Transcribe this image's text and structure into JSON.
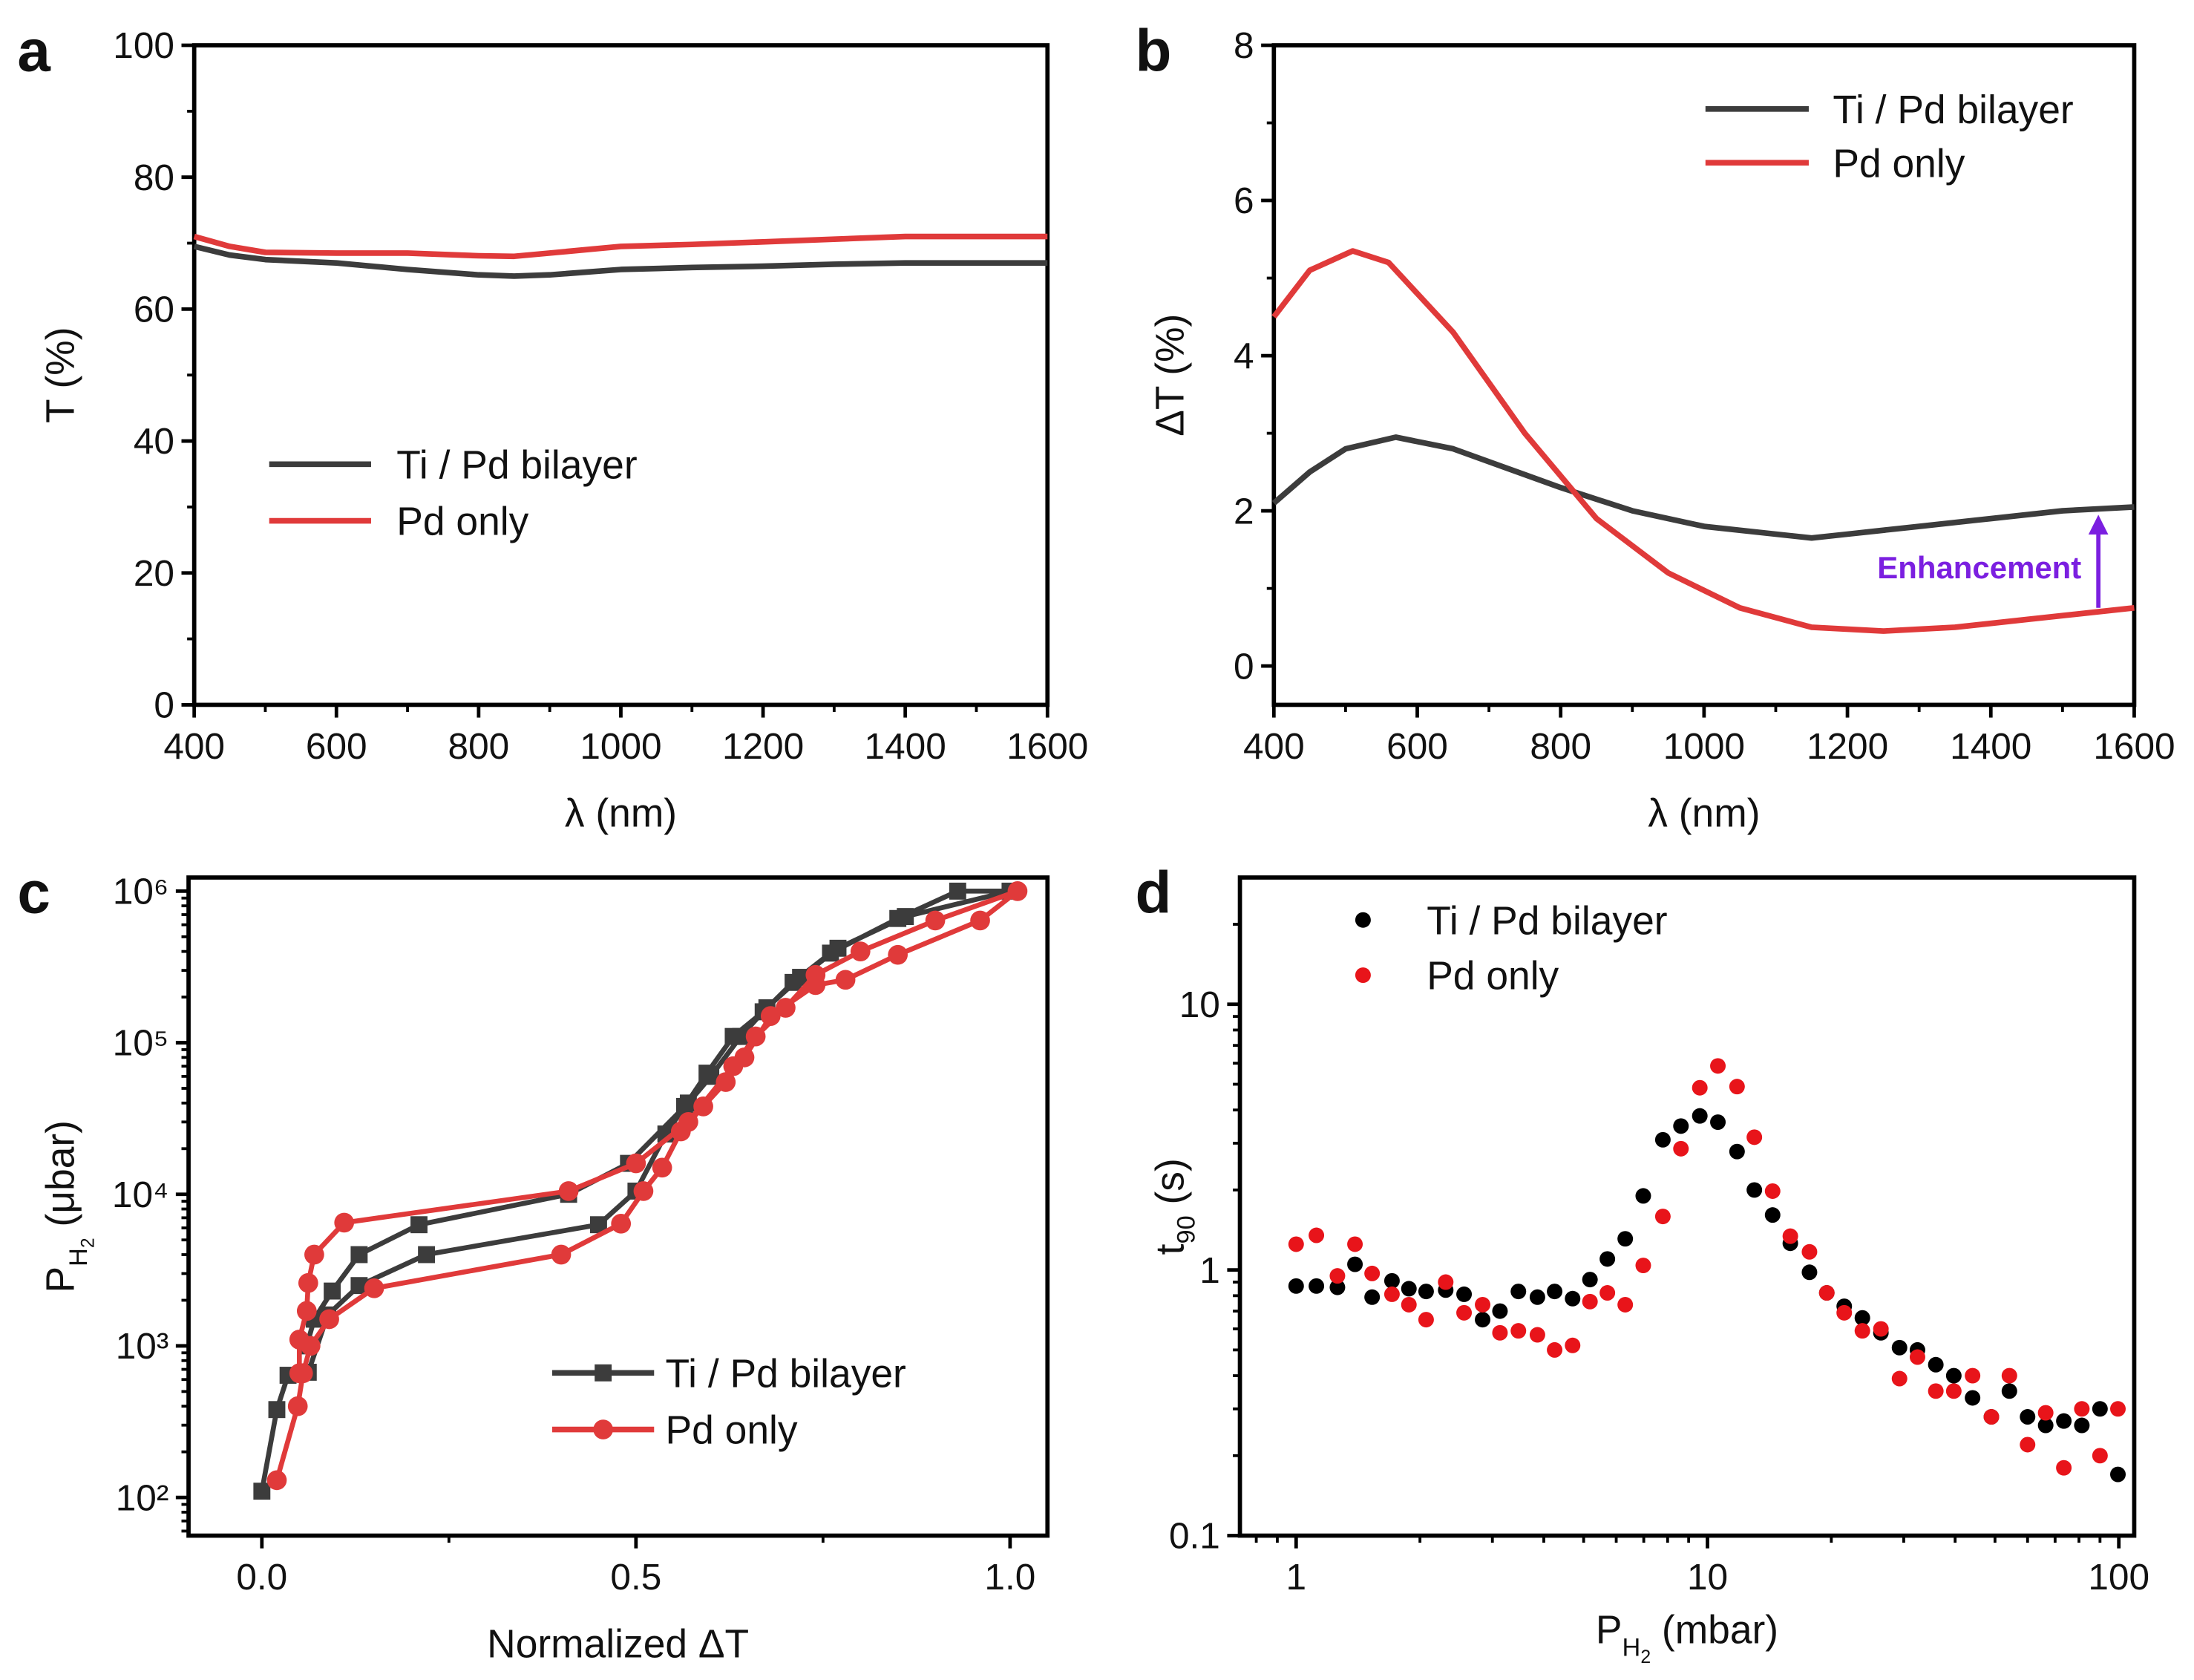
{
  "colors": {
    "ti_pd": "#3c3c3c",
    "pd_only": "#e03a3a",
    "ti_pd_dots": "#000000",
    "pd_only_dots": "#e8141a",
    "enhancement": "#7b1fe0"
  },
  "chart_data": [
    {
      "panel": "a",
      "type": "line",
      "xlabel": "λ (nm)",
      "ylabel": "T (%)",
      "xlim": [
        400,
        1600
      ],
      "ylim": [
        0,
        100
      ],
      "xscale": "linear",
      "yscale": "linear",
      "x_ticks": [
        400,
        600,
        800,
        1000,
        1200,
        1400,
        1600
      ],
      "y_ticks": [
        0,
        20,
        40,
        60,
        80,
        100
      ],
      "legend_placement": "center-left",
      "series": [
        {
          "name": "Ti / Pd bilayer",
          "color": "#3c3c3c",
          "x": [
            400,
            450,
            500,
            600,
            700,
            800,
            850,
            900,
            1000,
            1100,
            1200,
            1300,
            1400,
            1500,
            1600
          ],
          "y": [
            69.5,
            68.2,
            67.5,
            67,
            66,
            65.2,
            65,
            65.2,
            66,
            66.3,
            66.5,
            66.8,
            67,
            67,
            67
          ]
        },
        {
          "name": "Pd only",
          "color": "#e03a3a",
          "x": [
            400,
            450,
            500,
            600,
            700,
            800,
            850,
            900,
            1000,
            1100,
            1200,
            1300,
            1400,
            1500,
            1600
          ],
          "y": [
            71,
            69.5,
            68.6,
            68.5,
            68.5,
            68.1,
            68,
            68.5,
            69.5,
            69.8,
            70.2,
            70.6,
            71,
            71,
            71
          ]
        }
      ]
    },
    {
      "panel": "b",
      "type": "line",
      "xlabel": "λ (nm)",
      "ylabel": "ΔT (%)",
      "xlim": [
        400,
        1600
      ],
      "ylim": [
        -0.5,
        8
      ],
      "xscale": "linear",
      "yscale": "linear",
      "x_ticks": [
        400,
        600,
        800,
        1000,
        1200,
        1400,
        1600
      ],
      "y_ticks": [
        0,
        2,
        4,
        6,
        8
      ],
      "legend_placement": "top-right",
      "annotation": {
        "text": "Enhancement",
        "arrow_x": 1550,
        "arrow_from": 0.75,
        "arrow_to": 1.95
      },
      "series": [
        {
          "name": "Ti / Pd bilayer",
          "color": "#3c3c3c",
          "x": [
            400,
            450,
            500,
            570,
            650,
            800,
            900,
            1000,
            1100,
            1150,
            1200,
            1300,
            1400,
            1500,
            1600
          ],
          "y": [
            2.1,
            2.5,
            2.8,
            2.95,
            2.8,
            2.3,
            2.0,
            1.8,
            1.7,
            1.65,
            1.7,
            1.8,
            1.9,
            2.0,
            2.05
          ]
        },
        {
          "name": "Pd only",
          "color": "#e03a3a",
          "x": [
            400,
            450,
            510,
            560,
            650,
            750,
            850,
            950,
            1050,
            1150,
            1250,
            1350,
            1450,
            1600
          ],
          "y": [
            4.5,
            5.1,
            5.35,
            5.2,
            4.3,
            3.0,
            1.9,
            1.2,
            0.75,
            0.5,
            0.45,
            0.5,
            0.6,
            0.75
          ]
        }
      ]
    },
    {
      "panel": "c",
      "type": "line",
      "xlabel": "Normalized ΔT",
      "ylabel_parts": [
        "P",
        "H",
        "2",
        " (μbar)"
      ],
      "xlim": [
        -0.098,
        1.05
      ],
      "ylim": [
        56,
        1230000
      ],
      "xscale": "linear",
      "yscale": "log",
      "x_ticks": [
        0.0,
        0.5,
        1.0
      ],
      "x_tick_labels": [
        "0.0",
        "0.5",
        "1.0"
      ],
      "y_ticks": [
        100,
        1000,
        10000,
        100000,
        1000000
      ],
      "y_tick_labels": [
        "10²",
        "10³",
        "10⁴",
        "10⁵",
        "10⁶"
      ],
      "legend_placement": "bottom-right",
      "series": [
        {
          "name": "Ti /  Pd bilayer",
          "color": "#3c3c3c",
          "marker": "square",
          "x": [
            0,
            0.02,
            0.035,
            0.062,
            0.088,
            0.13,
            0.22,
            0.45,
            0.5,
            0.54,
            0.565,
            0.595,
            0.63,
            0.67,
            0.71,
            0.76,
            0.85,
            0.93,
            1.0,
            0.86,
            0.77,
            0.72,
            0.675,
            0.64,
            0.6,
            0.57,
            0.49,
            0.41,
            0.21,
            0.13,
            0.094,
            0.07,
            0.06
          ],
          "y": [
            110,
            380,
            640,
            670,
            1600,
            2500,
            4000,
            6300,
            10500,
            25000,
            38000,
            63000,
            110000,
            160000,
            250000,
            390000,
            660000,
            1000000,
            1000000,
            680000,
            420000,
            270000,
            170000,
            110000,
            60000,
            40000,
            16000,
            10000,
            6300,
            4000,
            2300,
            1500,
            1000
          ]
        },
        {
          "name": "Pd only",
          "color": "#e03a3a",
          "marker": "circle",
          "x": [
            0.02,
            0.048,
            0.055,
            0.065,
            0.09,
            0.15,
            0.4,
            0.48,
            0.51,
            0.535,
            0.56,
            0.59,
            0.62,
            0.645,
            0.68,
            0.74,
            0.78,
            0.85,
            0.96,
            1.01,
            0.9,
            0.8,
            0.74,
            0.7,
            0.66,
            0.63,
            0.57,
            0.5,
            0.41,
            0.11,
            0.07,
            0.062,
            0.06,
            0.05,
            0.05
          ],
          "y": [
            130,
            400,
            660,
            1000,
            1500,
            2400,
            4000,
            6400,
            10500,
            15000,
            26000,
            38000,
            55000,
            80000,
            150000,
            240000,
            260000,
            380000,
            640000,
            1000000,
            640000,
            400000,
            280000,
            170000,
            110000,
            70000,
            30000,
            16000,
            10500,
            6500,
            4000,
            2600,
            1700,
            1100,
            660
          ]
        }
      ]
    },
    {
      "panel": "d",
      "type": "scatter",
      "xlabel_parts": [
        "P",
        "H",
        "2",
        " (mbar)"
      ],
      "ylabel_parts": [
        "t",
        "90",
        " (s)"
      ],
      "xlim": [
        0.73,
        109
      ],
      "ylim": [
        0.1,
        30
      ],
      "xscale": "log",
      "yscale": "log",
      "x_ticks": [
        1,
        10,
        100
      ],
      "x_tick_labels": [
        "1",
        "10",
        "100"
      ],
      "y_ticks": [
        0.1,
        1,
        10
      ],
      "y_tick_labels": [
        "0.1",
        "1",
        "10"
      ],
      "legend_placement": "top-left",
      "x": [
        1.0,
        1.12,
        1.26,
        1.39,
        1.53,
        1.71,
        1.88,
        2.07,
        2.31,
        2.56,
        2.84,
        3.13,
        3.47,
        3.86,
        4.25,
        4.7,
        5.18,
        5.71,
        6.31,
        6.98,
        7.79,
        8.62,
        9.58,
        10.6,
        11.8,
        13.0,
        14.4,
        15.9,
        17.7,
        19.5,
        21.5,
        23.8,
        26.4,
        29.3,
        32.4,
        35.9,
        39.7,
        44.1,
        49.0,
        54.2,
        60.0,
        66.4,
        73.5,
        81.3,
        90.0,
        99.5
      ],
      "series": [
        {
          "name": "Ti / Pd bilayer",
          "color": "#000000",
          "y": [
            0.87,
            0.87,
            0.86,
            1.05,
            0.79,
            0.91,
            0.85,
            0.83,
            0.84,
            0.81,
            0.65,
            0.7,
            0.83,
            0.79,
            0.83,
            0.78,
            0.92,
            1.1,
            1.31,
            1.9,
            3.09,
            3.48,
            3.8,
            3.6,
            2.79,
            2.0,
            1.61,
            1.26,
            0.98,
            0.82,
            0.73,
            0.66,
            0.58,
            0.51,
            0.5,
            0.44,
            0.4,
            0.33,
            0.28,
            0.35,
            0.28,
            0.26,
            0.27,
            0.26,
            0.3,
            0.17
          ]
        },
        {
          "name": "Pd only",
          "color": "#e8141a",
          "y": [
            1.25,
            1.35,
            0.95,
            1.25,
            0.97,
            0.81,
            0.74,
            0.65,
            0.9,
            0.69,
            0.74,
            0.58,
            0.59,
            0.57,
            0.5,
            0.52,
            0.76,
            0.82,
            0.74,
            1.04,
            1.59,
            2.86,
            4.85,
            5.86,
            4.9,
            3.16,
            1.98,
            1.34,
            1.17,
            0.82,
            0.69,
            0.59,
            0.6,
            0.39,
            0.47,
            0.35,
            0.35,
            0.4,
            0.28,
            0.4,
            0.22,
            0.29,
            0.18,
            0.3,
            0.2,
            0.3
          ]
        }
      ]
    }
  ]
}
